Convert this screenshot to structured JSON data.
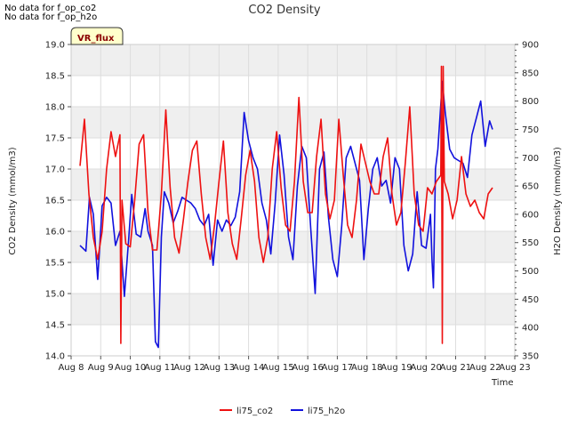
{
  "notes": {
    "line1": "No data for f_op_co2",
    "line2": "No data for f_op_h2o"
  },
  "badge": {
    "label": "VR_flux"
  },
  "chart_data": {
    "type": "line",
    "title": "CO2 Density",
    "xlabel": "Time",
    "ylabel_left": "CO2 Density (mmol/m3)",
    "ylabel_right": "H2O Density (mmol/m3)",
    "x_ticks": [
      "Aug 8",
      "Aug 9",
      "Aug 10",
      "Aug 11",
      "Aug 12",
      "Aug 13",
      "Aug 14",
      "Aug 15",
      "Aug 16",
      "Aug 17",
      "Aug 18",
      "Aug 19",
      "Aug 20",
      "Aug 21",
      "Aug 22",
      "Aug 23"
    ],
    "xlim": [
      8,
      23
    ],
    "ylim_left": [
      14.0,
      19.0
    ],
    "y_ticks_left": [
      "14.0",
      "14.5",
      "15.0",
      "15.5",
      "16.0",
      "16.5",
      "17.0",
      "17.5",
      "18.0",
      "18.5",
      "19.0"
    ],
    "ylim_right": [
      350,
      900
    ],
    "y_ticks_right": [
      "350",
      "400",
      "450",
      "500",
      "550",
      "600",
      "650",
      "700",
      "750",
      "800",
      "850",
      "900"
    ],
    "grid": true,
    "legend_position": "bottom-center",
    "colors": {
      "li75_co2": "#ee1111",
      "li75_h2o": "#1111dd",
      "band": "#efefef"
    },
    "series": [
      {
        "name": "li75_co2",
        "axis": "left",
        "x": [
          8.3,
          8.45,
          8.6,
          8.75,
          8.9,
          9.05,
          9.2,
          9.35,
          9.5,
          9.65,
          9.68,
          9.72,
          9.85,
          10.0,
          10.15,
          10.3,
          10.45,
          10.6,
          10.75,
          10.9,
          11.05,
          11.2,
          11.35,
          11.5,
          11.65,
          11.8,
          11.95,
          12.1,
          12.25,
          12.4,
          12.55,
          12.7,
          12.85,
          13.0,
          13.15,
          13.3,
          13.45,
          13.6,
          13.75,
          13.9,
          14.05,
          14.2,
          14.35,
          14.5,
          14.65,
          14.8,
          14.95,
          15.1,
          15.25,
          15.4,
          15.55,
          15.7,
          15.85,
          16.0,
          16.15,
          16.3,
          16.45,
          16.6,
          16.75,
          16.9,
          17.05,
          17.2,
          17.35,
          17.5,
          17.65,
          17.8,
          17.95,
          18.1,
          18.25,
          18.4,
          18.55,
          18.7,
          18.85,
          19.0,
          19.15,
          19.3,
          19.45,
          19.6,
          19.75,
          19.9,
          20.05,
          20.2,
          20.35,
          20.5,
          20.52,
          20.55,
          20.58,
          20.62,
          20.75,
          20.9,
          21.05,
          21.2,
          21.35,
          21.5,
          21.65,
          21.8,
          21.95,
          22.1,
          22.25
        ],
        "values": [
          17.05,
          17.8,
          16.6,
          15.9,
          15.55,
          16.0,
          17.0,
          17.6,
          17.2,
          17.55,
          14.2,
          16.5,
          15.8,
          15.75,
          16.5,
          17.4,
          17.55,
          16.3,
          15.7,
          15.7,
          16.6,
          17.95,
          16.7,
          15.9,
          15.65,
          16.2,
          16.8,
          17.3,
          17.45,
          16.6,
          15.9,
          15.55,
          16.1,
          16.8,
          17.45,
          16.3,
          15.8,
          15.55,
          16.2,
          16.9,
          17.3,
          16.8,
          15.9,
          15.5,
          15.9,
          17.0,
          17.6,
          16.7,
          16.1,
          16.0,
          16.8,
          18.15,
          16.8,
          16.3,
          16.3,
          17.2,
          17.8,
          16.6,
          16.2,
          16.5,
          17.8,
          16.9,
          16.1,
          15.9,
          16.5,
          17.4,
          17.1,
          16.8,
          16.6,
          16.6,
          17.2,
          17.5,
          16.6,
          16.1,
          16.3,
          17.1,
          18.0,
          16.6,
          16.1,
          16.0,
          16.7,
          16.6,
          16.8,
          16.9,
          18.65,
          14.2,
          18.65,
          16.8,
          16.6,
          16.2,
          16.5,
          17.2,
          16.6,
          16.4,
          16.5,
          16.3,
          16.2,
          16.6,
          16.7
        ]
      },
      {
        "name": "li75_h2o",
        "axis": "right",
        "x": [
          8.3,
          8.5,
          8.62,
          8.75,
          8.9,
          9.05,
          9.2,
          9.35,
          9.5,
          9.65,
          9.8,
          9.95,
          10.05,
          10.2,
          10.35,
          10.5,
          10.6,
          10.75,
          10.85,
          10.95,
          11.0,
          11.05,
          11.15,
          11.3,
          11.45,
          11.6,
          11.75,
          11.9,
          12.05,
          12.2,
          12.35,
          12.5,
          12.65,
          12.8,
          12.95,
          13.1,
          13.25,
          13.4,
          13.55,
          13.7,
          13.85,
          14.0,
          14.15,
          14.3,
          14.45,
          14.6,
          14.75,
          14.9,
          15.05,
          15.2,
          15.35,
          15.5,
          15.65,
          15.8,
          15.95,
          16.1,
          16.25,
          16.4,
          16.55,
          16.7,
          16.85,
          17.0,
          17.15,
          17.3,
          17.45,
          17.6,
          17.75,
          17.9,
          18.05,
          18.2,
          18.35,
          18.5,
          18.65,
          18.8,
          18.95,
          19.1,
          19.25,
          19.4,
          19.55,
          19.7,
          19.85,
          20.0,
          20.15,
          20.2,
          20.25,
          20.32,
          20.4,
          20.55,
          20.65,
          20.8,
          20.95,
          21.1,
          21.25,
          21.4,
          21.55,
          21.7,
          21.85,
          22.0,
          22.15,
          22.25
        ],
        "values": [
          545,
          535,
          630,
          600,
          485,
          615,
          630,
          620,
          545,
          570,
          455,
          560,
          635,
          565,
          560,
          610,
          570,
          545,
          375,
          365,
          460,
          560,
          640,
          620,
          585,
          605,
          630,
          625,
          620,
          610,
          590,
          580,
          600,
          510,
          590,
          570,
          590,
          580,
          595,
          640,
          780,
          730,
          700,
          680,
          620,
          590,
          530,
          620,
          740,
          670,
          560,
          520,
          650,
          720,
          700,
          575,
          460,
          680,
          710,
          595,
          520,
          490,
          580,
          700,
          720,
          690,
          660,
          520,
          610,
          680,
          700,
          650,
          660,
          620,
          700,
          680,
          545,
          500,
          530,
          640,
          545,
          540,
          600,
          520,
          470,
          680,
          715,
          835,
          780,
          715,
          700,
          695,
          690,
          665,
          740,
          770,
          800,
          720,
          765,
          750
        ]
      }
    ]
  }
}
